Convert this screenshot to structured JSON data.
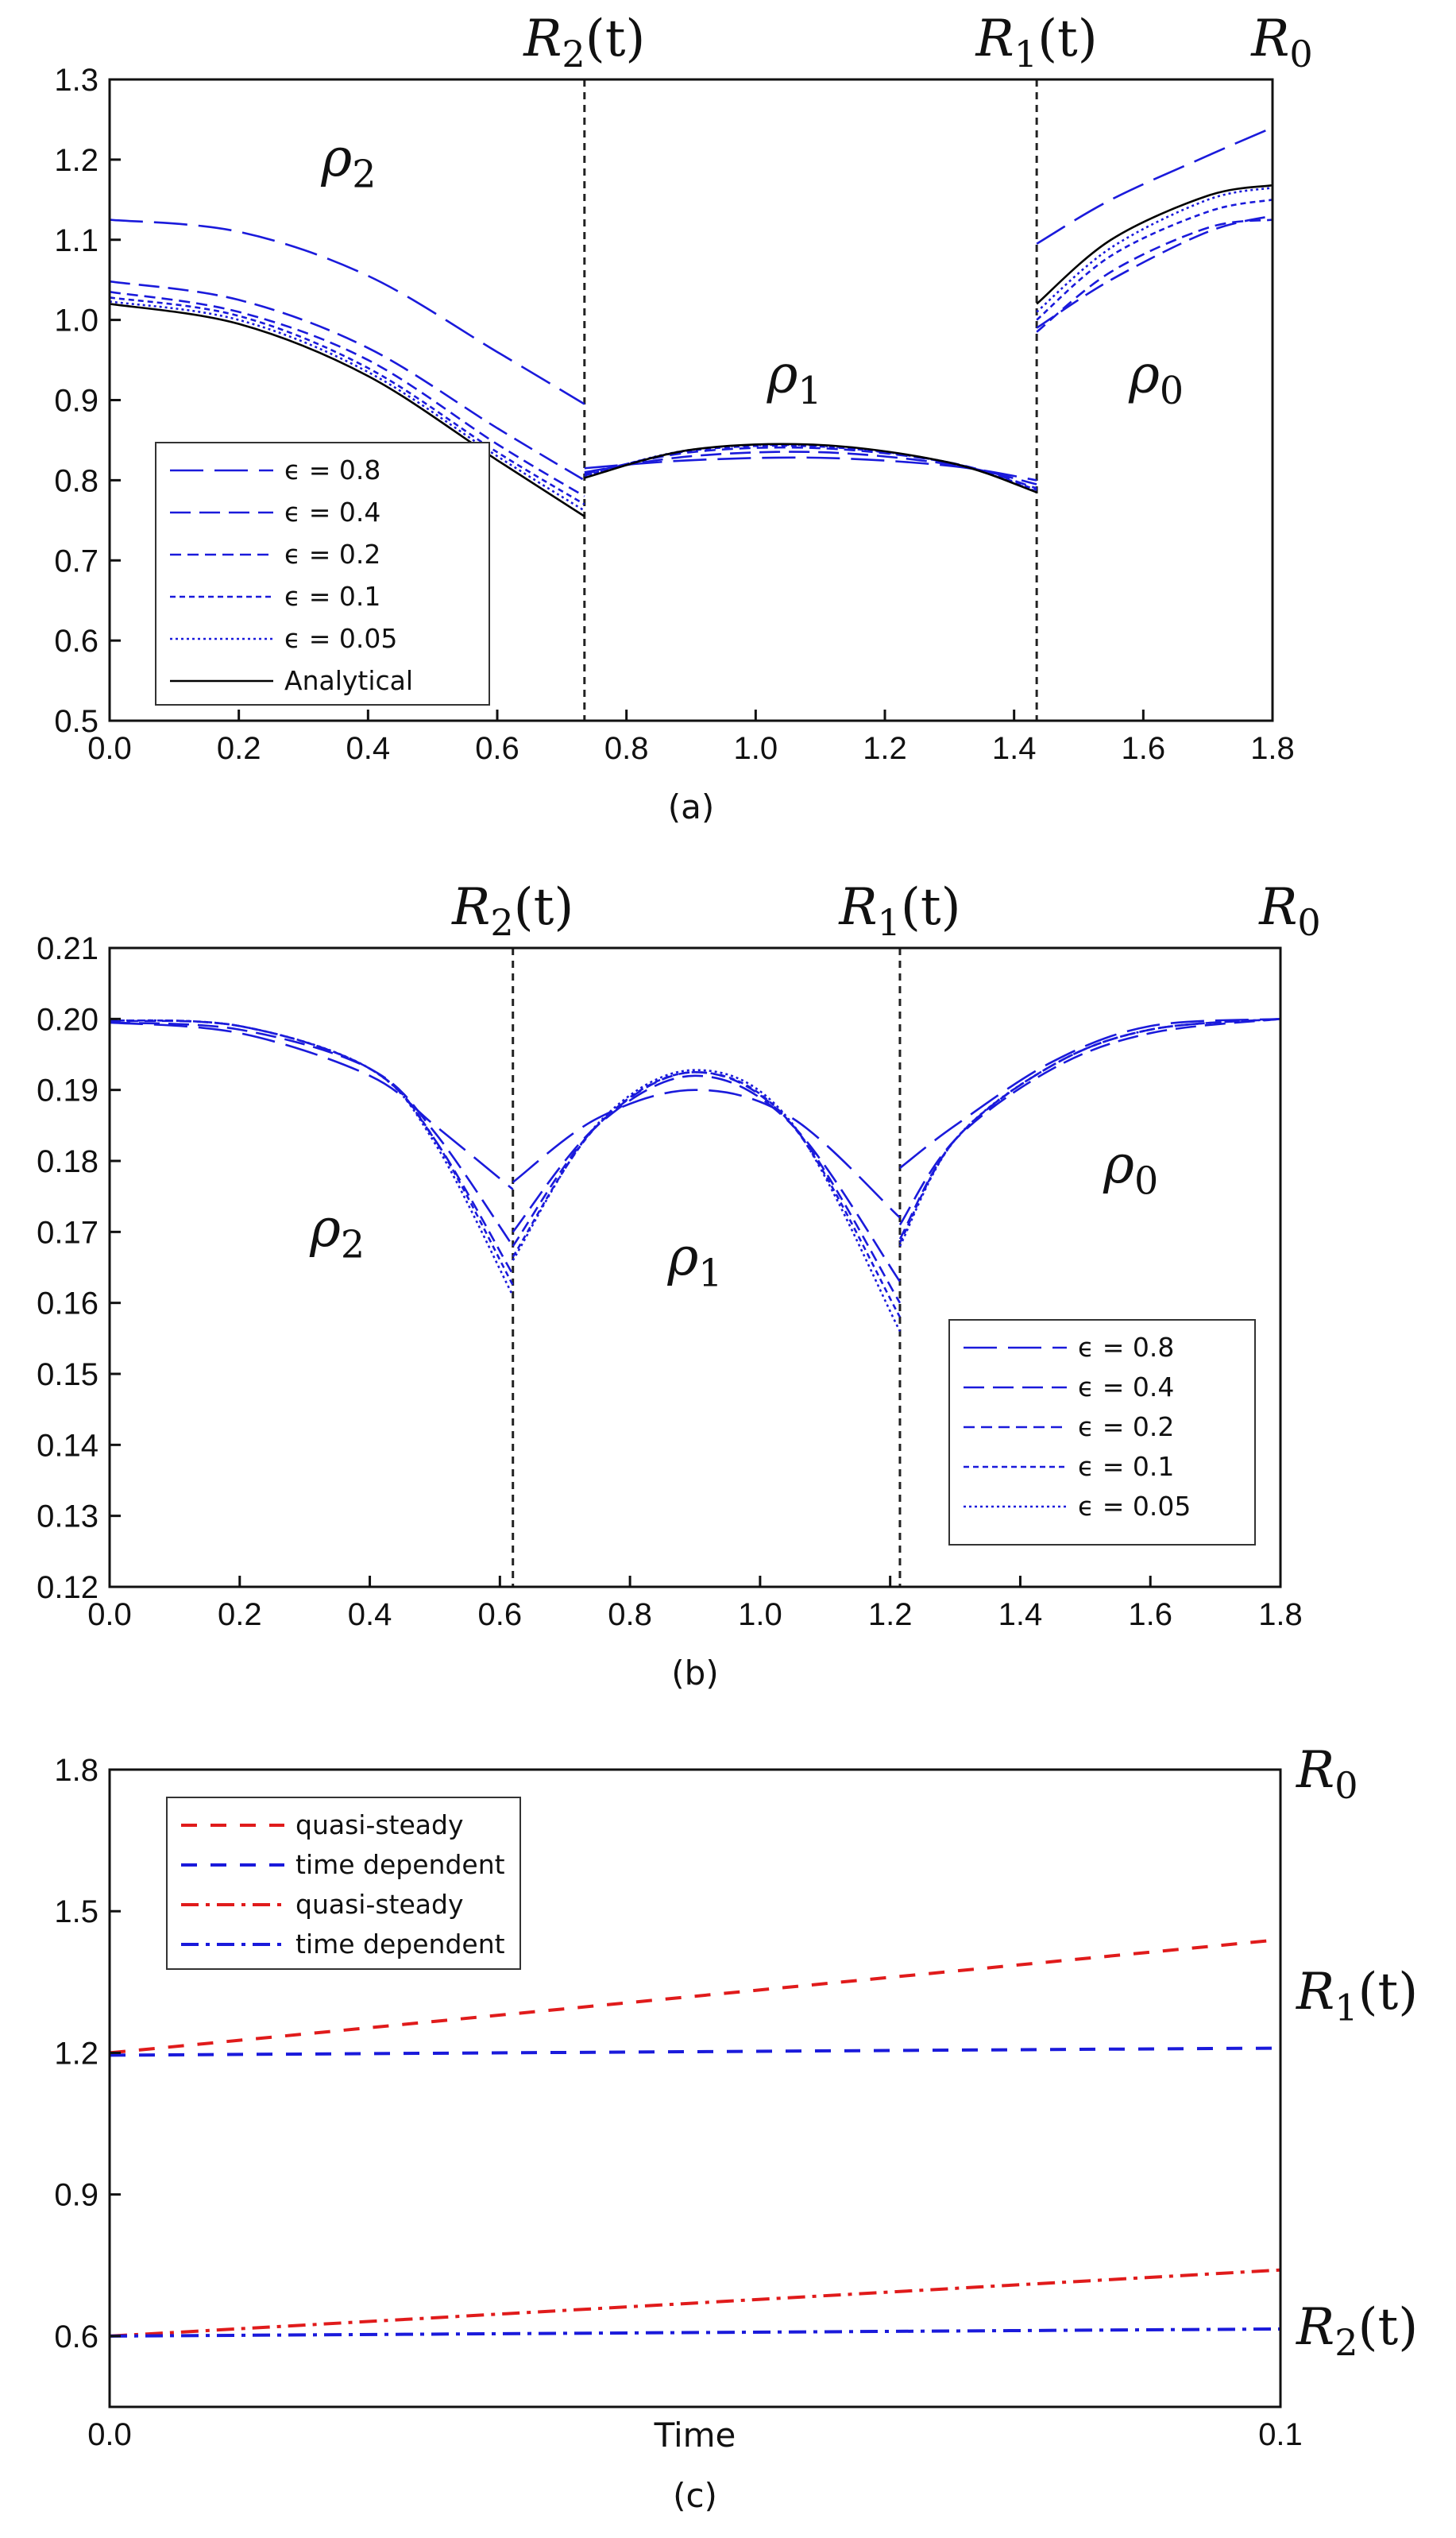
{
  "colors": {
    "blue": "#1a1adb",
    "black": "#000000",
    "red": "#e01b1b",
    "axis": "#111111",
    "background": "#ffffff"
  },
  "chart_data": [
    {
      "id": "a",
      "type": "line",
      "caption": "(a)",
      "xlim": [
        0,
        1.8
      ],
      "ylim": [
        0.5,
        1.3
      ],
      "xticks": [
        "0.0",
        "0.2",
        "0.4",
        "0.6",
        "0.8",
        "1.0",
        "1.2",
        "1.4",
        "1.6",
        "1.8"
      ],
      "xtick_values": [
        0,
        0.2,
        0.4,
        0.6,
        0.8,
        1.0,
        1.2,
        1.4,
        1.6,
        1.8
      ],
      "yticks": [
        "0.5",
        "0.6",
        "0.7",
        "0.8",
        "0.9",
        "1.0",
        "1.1",
        "1.2",
        "1.3"
      ],
      "ytick_values": [
        0.5,
        0.6,
        0.7,
        0.8,
        0.9,
        1.0,
        1.1,
        1.2,
        1.3
      ],
      "interfaces": [
        {
          "x": 0.735,
          "label": "R",
          "sub": "2",
          "suffix": "(t)"
        },
        {
          "x": 1.435,
          "label": "R",
          "sub": "1",
          "suffix": "(t)"
        },
        {
          "x": 1.8,
          "label": "R",
          "sub": "0",
          "suffix": "",
          "no_line": true
        }
      ],
      "region_labels": [
        {
          "label": "ρ",
          "sub": "2",
          "x": 0.37,
          "y": 1.18
        },
        {
          "label": "ρ",
          "sub": "1",
          "x": 1.06,
          "y": 0.91
        },
        {
          "label": "ρ",
          "sub": "0",
          "x": 1.62,
          "y": 0.91
        }
      ],
      "legend": [
        "ϵ = 0.8",
        "ϵ = 0.4",
        "ϵ = 0.2",
        "ϵ = 0.1",
        "ϵ = 0.05",
        "Analytical"
      ],
      "series": [
        {
          "name": "ϵ = 0.8",
          "style": "long-dash",
          "color": "blue",
          "segments": [
            {
              "x": [
                0,
                0.2,
                0.4,
                0.6,
                0.735
              ],
              "y": [
                1.125,
                1.11,
                1.055,
                0.96,
                0.895
              ]
            },
            {
              "x": [
                0.735,
                0.9,
                1.1,
                1.3,
                1.435
              ],
              "y": [
                0.815,
                0.825,
                0.828,
                0.818,
                0.8
              ]
            },
            {
              "x": [
                1.435,
                1.55,
                1.7,
                1.8
              ],
              "y": [
                1.095,
                1.15,
                1.205,
                1.24
              ]
            }
          ]
        },
        {
          "name": "ϵ = 0.4",
          "style": "dash",
          "color": "blue",
          "segments": [
            {
              "x": [
                0,
                0.2,
                0.4,
                0.6,
                0.735
              ],
              "y": [
                1.048,
                1.025,
                0.965,
                0.865,
                0.8
              ]
            },
            {
              "x": [
                0.735,
                0.9,
                1.1,
                1.3,
                1.435
              ],
              "y": [
                0.81,
                0.83,
                0.835,
                0.82,
                0.795
              ]
            },
            {
              "x": [
                1.435,
                1.55,
                1.7,
                1.8
              ],
              "y": [
                0.99,
                1.05,
                1.11,
                1.13
              ]
            }
          ]
        },
        {
          "name": "ϵ = 0.2",
          "style": "short-dash",
          "color": "blue",
          "segments": [
            {
              "x": [
                0,
                0.2,
                0.4,
                0.6,
                0.735
              ],
              "y": [
                1.035,
                1.01,
                0.95,
                0.845,
                0.78
              ]
            },
            {
              "x": [
                0.735,
                0.9,
                1.1,
                1.3,
                1.435
              ],
              "y": [
                0.808,
                0.835,
                0.84,
                0.822,
                0.79
              ]
            },
            {
              "x": [
                1.435,
                1.55,
                1.7,
                1.8
              ],
              "y": [
                0.985,
                1.06,
                1.115,
                1.125
              ]
            }
          ]
        },
        {
          "name": "ϵ = 0.1",
          "style": "dot-dash-fine",
          "color": "blue",
          "segments": [
            {
              "x": [
                0,
                0.2,
                0.4,
                0.6,
                0.735
              ],
              "y": [
                1.028,
                1.005,
                0.94,
                0.835,
                0.77
              ]
            },
            {
              "x": [
                0.735,
                0.9,
                1.1,
                1.3,
                1.435
              ],
              "y": [
                0.806,
                0.837,
                0.842,
                0.822,
                0.788
              ]
            },
            {
              "x": [
                1.435,
                1.55,
                1.7,
                1.8
              ],
              "y": [
                1.0,
                1.08,
                1.135,
                1.15
              ]
            }
          ]
        },
        {
          "name": "ϵ = 0.05",
          "style": "dotted",
          "color": "blue",
          "segments": [
            {
              "x": [
                0,
                0.2,
                0.4,
                0.6,
                0.735
              ],
              "y": [
                1.023,
                1.0,
                0.935,
                0.83,
                0.762
              ]
            },
            {
              "x": [
                0.735,
                0.9,
                1.1,
                1.3,
                1.435
              ],
              "y": [
                0.805,
                0.838,
                0.843,
                0.822,
                0.786
              ]
            },
            {
              "x": [
                1.435,
                1.55,
                1.7,
                1.8
              ],
              "y": [
                1.01,
                1.09,
                1.15,
                1.165
              ]
            }
          ]
        },
        {
          "name": "Analytical",
          "style": "solid",
          "color": "black",
          "segments": [
            {
              "x": [
                0,
                0.2,
                0.4,
                0.6,
                0.735
              ],
              "y": [
                1.02,
                0.995,
                0.93,
                0.825,
                0.755
              ]
            },
            {
              "x": [
                0.735,
                0.9,
                1.1,
                1.3,
                1.435
              ],
              "y": [
                0.803,
                0.838,
                0.844,
                0.822,
                0.785
              ]
            },
            {
              "x": [
                1.435,
                1.55,
                1.7,
                1.8
              ],
              "y": [
                1.02,
                1.1,
                1.155,
                1.168
              ]
            }
          ]
        }
      ]
    },
    {
      "id": "b",
      "type": "line",
      "caption": "(b)",
      "xlim": [
        0,
        1.8
      ],
      "ylim": [
        0.12,
        0.21
      ],
      "xticks": [
        "0.0",
        "0.2",
        "0.4",
        "0.6",
        "0.8",
        "1.0",
        "1.2",
        "1.4",
        "1.6",
        "1.8"
      ],
      "xtick_values": [
        0,
        0.2,
        0.4,
        0.6,
        0.8,
        1.0,
        1.2,
        1.4,
        1.6,
        1.8
      ],
      "yticks": [
        "0.12",
        "0.13",
        "0.14",
        "0.15",
        "0.16",
        "0.17",
        "0.18",
        "0.19",
        "0.20",
        "0.21"
      ],
      "ytick_values": [
        0.12,
        0.13,
        0.14,
        0.15,
        0.16,
        0.17,
        0.18,
        0.19,
        0.2,
        0.21
      ],
      "interfaces": [
        {
          "x": 0.62,
          "label": "R",
          "sub": "2",
          "suffix": "(t)"
        },
        {
          "x": 1.215,
          "label": "R",
          "sub": "1",
          "suffix": "(t)"
        },
        {
          "x": 1.8,
          "label": "R",
          "sub": "0",
          "suffix": "",
          "no_line": true
        }
      ],
      "region_labels": [
        {
          "label": "ρ",
          "sub": "2",
          "x": 0.35,
          "y": 0.168
        },
        {
          "label": "ρ",
          "sub": "1",
          "x": 0.9,
          "y": 0.164
        },
        {
          "label": "ρ",
          "sub": "0",
          "x": 1.57,
          "y": 0.177
        }
      ],
      "legend": [
        "ϵ = 0.8",
        "ϵ = 0.4",
        "ϵ = 0.2",
        "ϵ = 0.1",
        "ϵ = 0.05"
      ],
      "series": [
        {
          "name": "ϵ = 0.8",
          "style": "long-dash",
          "color": "blue",
          "segments": [
            {
              "x": [
                0,
                0.2,
                0.4,
                0.5,
                0.62
              ],
              "y": [
                0.1995,
                0.198,
                0.192,
                0.185,
                0.176
              ]
            },
            {
              "x": [
                0.62,
                0.75,
                0.9,
                1.05,
                1.215
              ],
              "y": [
                0.177,
                0.186,
                0.19,
                0.186,
                0.172
              ]
            },
            {
              "x": [
                1.215,
                1.3,
                1.45,
                1.6,
                1.8
              ],
              "y": [
                0.179,
                0.185,
                0.194,
                0.199,
                0.2
              ]
            }
          ]
        },
        {
          "name": "ϵ = 0.4",
          "style": "dash",
          "color": "blue",
          "segments": [
            {
              "x": [
                0,
                0.2,
                0.4,
                0.5,
                0.62
              ],
              "y": [
                0.1995,
                0.1985,
                0.193,
                0.184,
                0.168
              ]
            },
            {
              "x": [
                0.62,
                0.75,
                0.9,
                1.05,
                1.215
              ],
              "y": [
                0.17,
                0.185,
                0.192,
                0.185,
                0.163
              ]
            },
            {
              "x": [
                1.215,
                1.3,
                1.45,
                1.6,
                1.8
              ],
              "y": [
                0.171,
                0.183,
                0.193,
                0.198,
                0.2
              ]
            }
          ]
        },
        {
          "name": "ϵ = 0.2",
          "style": "short-dash",
          "color": "blue",
          "segments": [
            {
              "x": [
                0,
                0.2,
                0.4,
                0.5,
                0.62
              ],
              "y": [
                0.1997,
                0.199,
                0.193,
                0.183,
                0.164
              ]
            },
            {
              "x": [
                0.62,
                0.75,
                0.9,
                1.05,
                1.215
              ],
              "y": [
                0.168,
                0.185,
                0.1925,
                0.185,
                0.16
              ]
            },
            {
              "x": [
                1.215,
                1.3,
                1.45,
                1.6,
                1.8
              ],
              "y": [
                0.169,
                0.183,
                0.1935,
                0.1985,
                0.2
              ]
            }
          ]
        },
        {
          "name": "ϵ = 0.1",
          "style": "dot-dash-fine",
          "color": "blue",
          "segments": [
            {
              "x": [
                0,
                0.2,
                0.4,
                0.5,
                0.62
              ],
              "y": [
                0.1998,
                0.199,
                0.193,
                0.183,
                0.1625
              ]
            },
            {
              "x": [
                0.62,
                0.75,
                0.9,
                1.05,
                1.215
              ],
              "y": [
                0.1665,
                0.185,
                0.1925,
                0.185,
                0.158
              ]
            },
            {
              "x": [
                1.215,
                1.3,
                1.45,
                1.6,
                1.8
              ],
              "y": [
                0.1685,
                0.183,
                0.1935,
                0.1985,
                0.2
              ]
            }
          ]
        },
        {
          "name": "ϵ = 0.05",
          "style": "dotted",
          "color": "blue",
          "segments": [
            {
              "x": [
                0,
                0.2,
                0.4,
                0.5,
                0.62
              ],
              "y": [
                0.1998,
                0.199,
                0.193,
                0.1825,
                0.161
              ]
            },
            {
              "x": [
                0.62,
                0.75,
                0.9,
                1.05,
                1.215
              ],
              "y": [
                0.166,
                0.1852,
                0.1928,
                0.1852,
                0.156
              ]
            },
            {
              "x": [
                1.215,
                1.3,
                1.45,
                1.6,
                1.8
              ],
              "y": [
                0.168,
                0.183,
                0.1935,
                0.1985,
                0.2
              ]
            }
          ]
        }
      ]
    },
    {
      "id": "c",
      "type": "line",
      "caption": "(c)",
      "xlabel": "Time",
      "xlim": [
        0,
        0.1
      ],
      "ylim": [
        0.45,
        1.8
      ],
      "xticks": [
        "0.0",
        "0.1"
      ],
      "xtick_values": [
        0,
        0.1
      ],
      "yticks": [
        "0.6",
        "0.9",
        "1.2",
        "1.5",
        "1.8"
      ],
      "ytick_values": [
        0.6,
        0.9,
        1.2,
        1.5,
        1.8
      ],
      "right_labels": [
        {
          "label": "R",
          "sub": "0",
          "suffix": "",
          "y": 1.8
        },
        {
          "label": "R",
          "sub": "1",
          "suffix": "(t)",
          "y": 1.33
        },
        {
          "label": "R",
          "sub": "2",
          "suffix": "(t)",
          "y": 0.62
        }
      ],
      "legend": [
        "quasi-steady",
        "time dependent",
        "quasi-steady",
        "time dependent"
      ],
      "series": [
        {
          "name": "quasi-steady",
          "style": "dash-wide",
          "color": "red",
          "segments": [
            {
              "x": [
                0,
                0.1
              ],
              "y": [
                1.2,
                1.44
              ]
            }
          ]
        },
        {
          "name": "time dependent",
          "style": "dash-wide",
          "color": "blue",
          "segments": [
            {
              "x": [
                0,
                0.1
              ],
              "y": [
                1.195,
                1.21
              ]
            }
          ]
        },
        {
          "name": "quasi-steady",
          "style": "dash-dot",
          "color": "red",
          "segments": [
            {
              "x": [
                0,
                0.1
              ],
              "y": [
                0.6,
                0.74
              ]
            }
          ]
        },
        {
          "name": "time dependent",
          "style": "dash-dot",
          "color": "blue",
          "segments": [
            {
              "x": [
                0,
                0.1
              ],
              "y": [
                0.6,
                0.615
              ]
            }
          ]
        }
      ]
    }
  ]
}
